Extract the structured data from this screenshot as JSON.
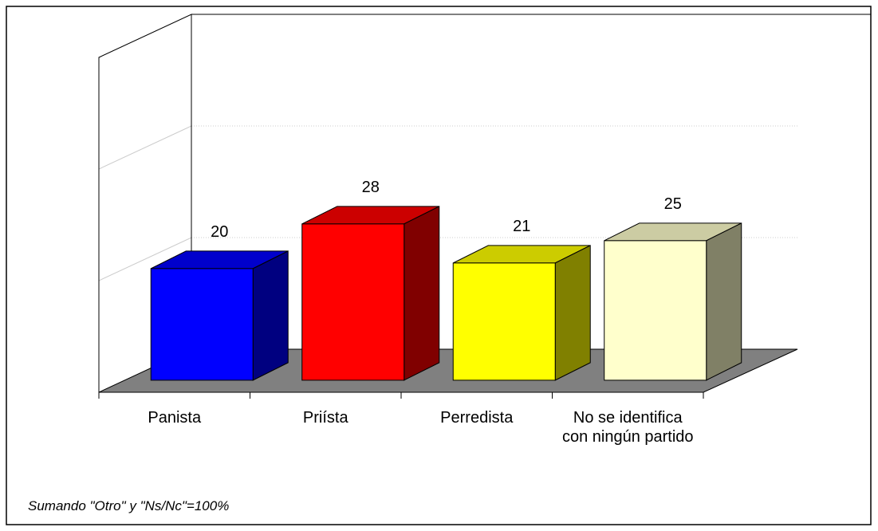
{
  "chart_data": {
    "type": "bar3d",
    "categories": [
      "Panista",
      "Priísta",
      "Perredista",
      "No se identifica con ningún partido"
    ],
    "values": [
      20,
      28,
      21,
      25
    ],
    "colors": [
      "#0000ff",
      "#ff0000",
      "#ffff00",
      "#ffffcc"
    ],
    "ylim": [
      0,
      60
    ],
    "yticks": [
      0,
      20,
      40,
      60
    ],
    "grid": true,
    "annotation": "Sumando  \"Otro\" y \"Ns/Nc\"=100%"
  }
}
